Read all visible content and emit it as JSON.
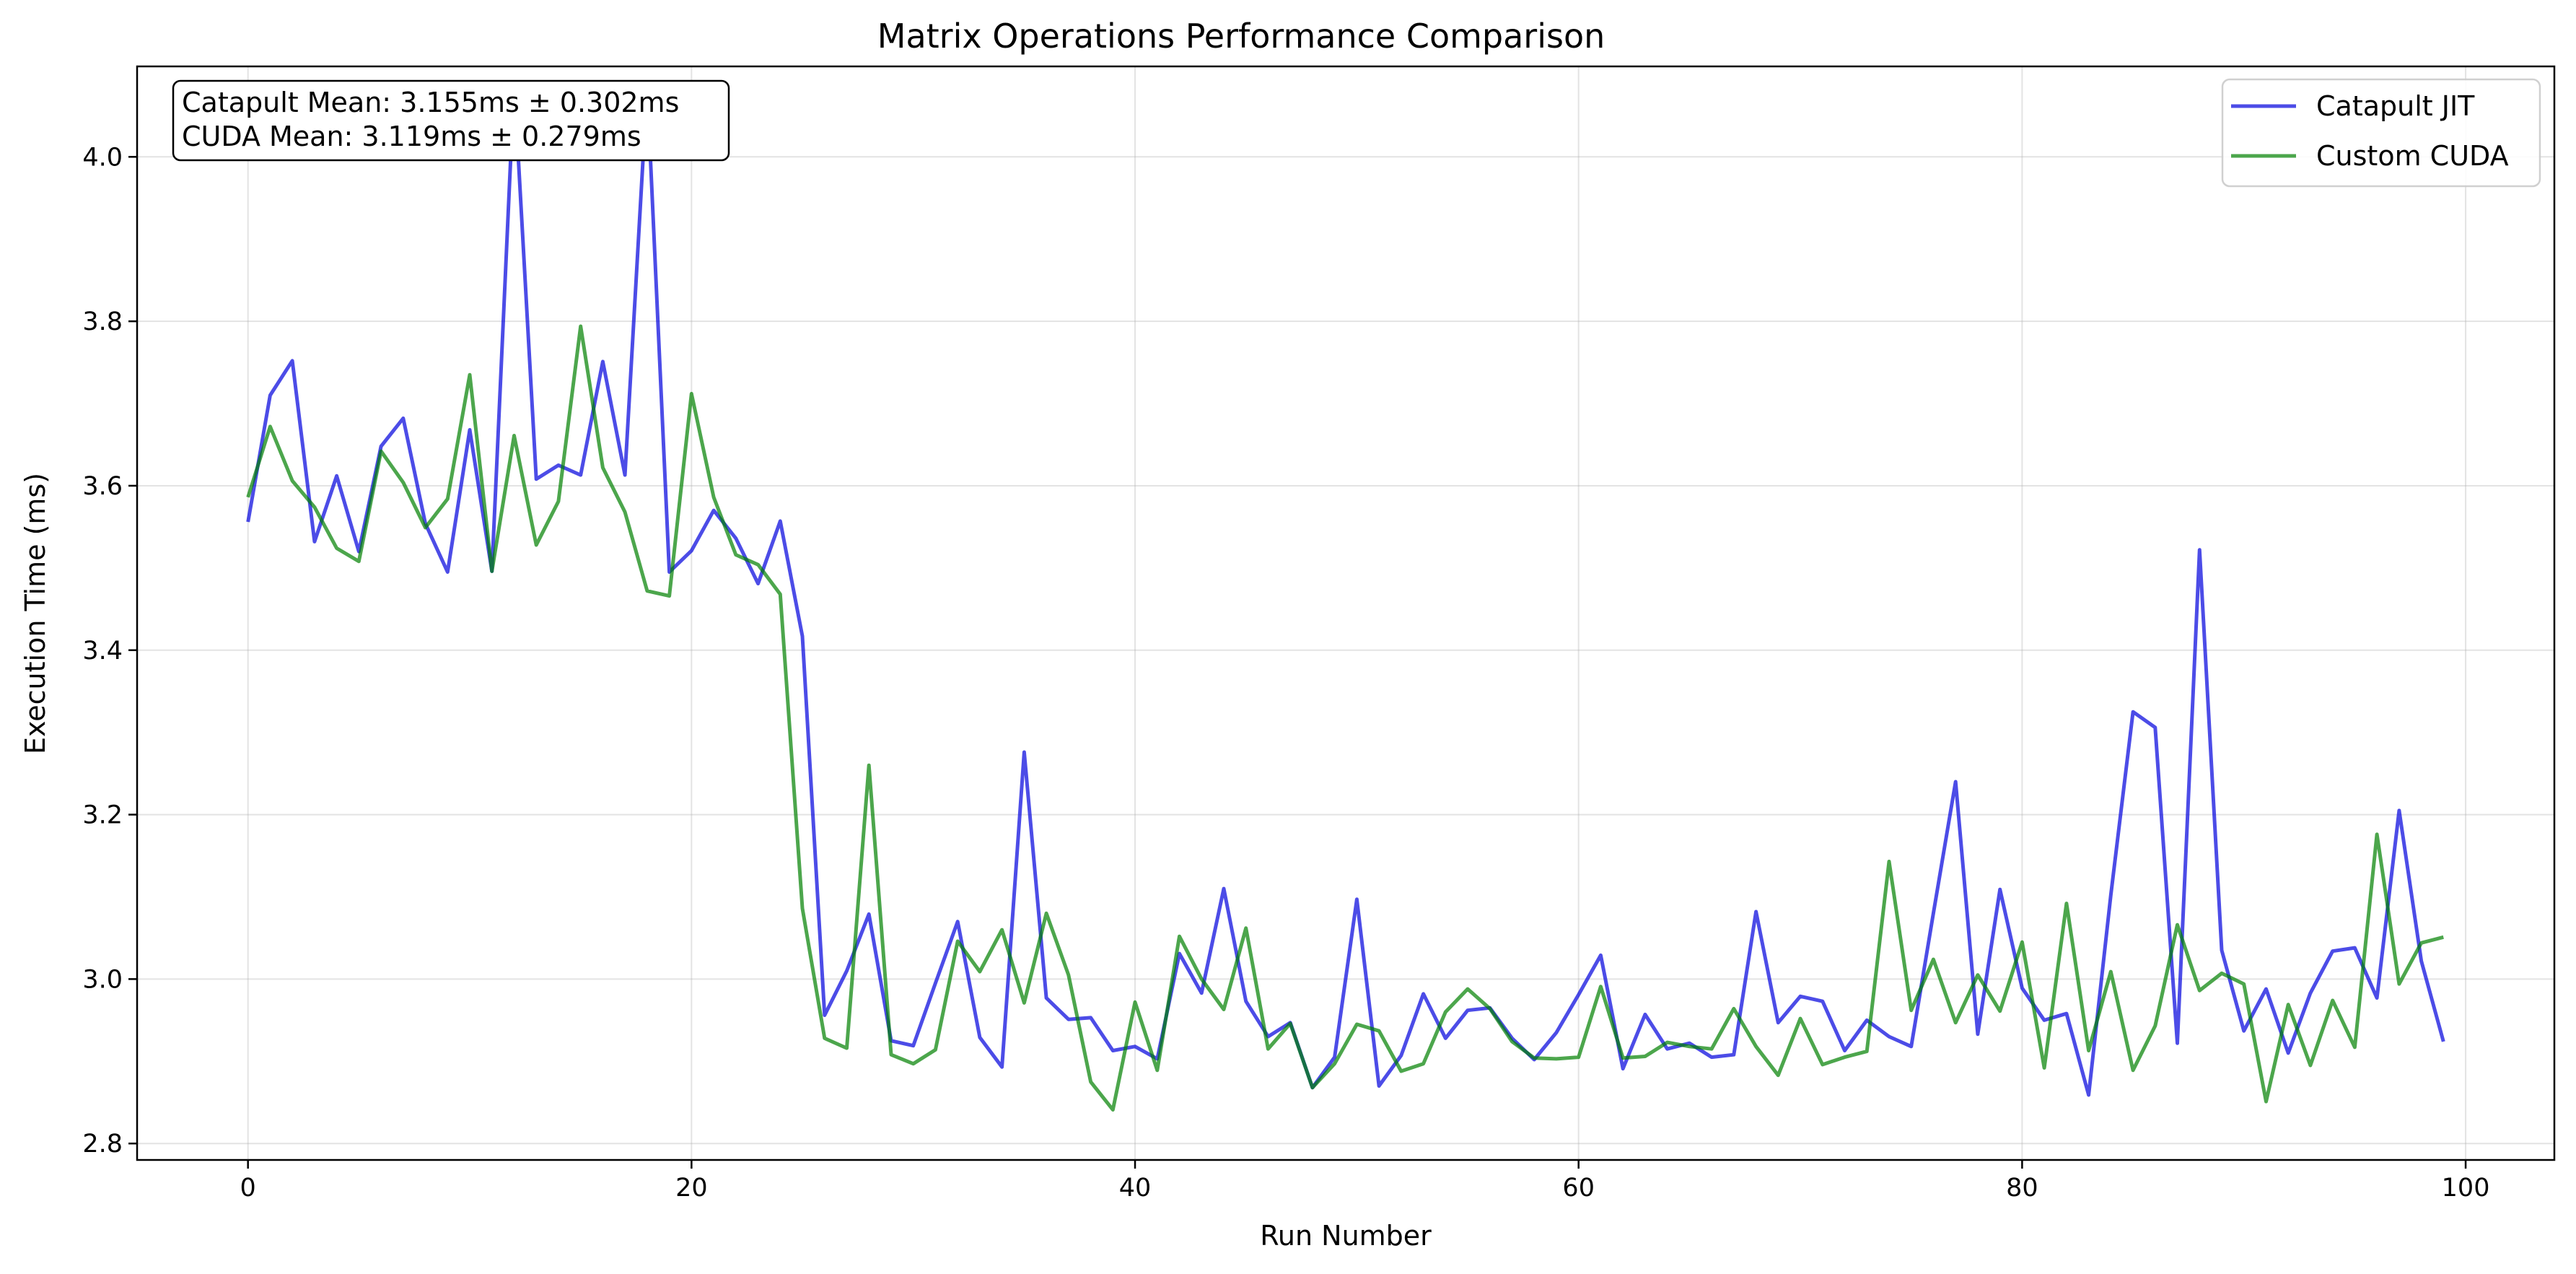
{
  "chart_data": {
    "type": "line",
    "title": "Matrix Operations Performance Comparison",
    "xlabel": "Run Number",
    "ylabel": "Execution Time (ms)",
    "xlim": [
      -5,
      104
    ],
    "ylim": [
      2.78,
      4.11
    ],
    "xticks": [
      0,
      20,
      40,
      60,
      80,
      100
    ],
    "yticks": [
      2.8,
      3.0,
      3.2,
      3.4,
      3.6,
      3.8,
      4.0
    ],
    "ytick_labels": [
      "2.8",
      "3.0",
      "3.2",
      "3.4",
      "3.6",
      "3.8",
      "4.0"
    ],
    "grid": true,
    "legend_position": "top-right",
    "annotation_lines": [
      "Catapult Mean: 3.155ms ± 0.302ms",
      "CUDA Mean: 3.119ms ± 0.279ms"
    ],
    "x": [
      0,
      1,
      2,
      3,
      4,
      5,
      6,
      7,
      8,
      9,
      10,
      11,
      12,
      13,
      14,
      15,
      16,
      17,
      18,
      19,
      20,
      21,
      22,
      23,
      24,
      25,
      26,
      27,
      28,
      29,
      30,
      31,
      32,
      33,
      34,
      35,
      36,
      37,
      38,
      39,
      40,
      41,
      42,
      43,
      44,
      45,
      46,
      47,
      48,
      49,
      50,
      51,
      52,
      53,
      54,
      55,
      56,
      57,
      58,
      59,
      60,
      61,
      62,
      63,
      64,
      65,
      66,
      67,
      68,
      69,
      70,
      71,
      72,
      73,
      74,
      75,
      76,
      77,
      78,
      79,
      80,
      81,
      82,
      83,
      84,
      85,
      86,
      87,
      88,
      89,
      90,
      91,
      92,
      93,
      94,
      95,
      96,
      97,
      98,
      99
    ],
    "series": [
      {
        "name": "Catapult JIT",
        "color": "#0000dd",
        "values": [
          3.556,
          3.71,
          3.752,
          3.532,
          3.612,
          3.52,
          3.648,
          3.682,
          3.554,
          3.495,
          3.668,
          3.496,
          4.09,
          3.608,
          3.625,
          3.613,
          3.751,
          3.613,
          4.085,
          3.495,
          3.521,
          3.57,
          3.536,
          3.481,
          3.557,
          3.417,
          2.956,
          3.01,
          3.079,
          2.925,
          2.919,
          2.995,
          3.07,
          2.929,
          2.893,
          3.276,
          2.977,
          2.951,
          2.953,
          2.913,
          2.918,
          2.903,
          3.031,
          2.983,
          3.11,
          2.973,
          2.93,
          2.947,
          2.868,
          2.905,
          3.097,
          2.87,
          2.907,
          2.982,
          2.928,
          2.962,
          2.965,
          2.928,
          2.902,
          2.935,
          2.981,
          3.029,
          2.891,
          2.957,
          2.915,
          2.922,
          2.905,
          2.908,
          3.082,
          2.947,
          2.979,
          2.973,
          2.913,
          2.95,
          2.93,
          2.918,
          3.08,
          3.24,
          2.933,
          3.109,
          2.989,
          2.95,
          2.958,
          2.859,
          3.102,
          3.325,
          3.306,
          2.922,
          3.522,
          3.035,
          2.937,
          2.988,
          2.91,
          2.983,
          3.034,
          3.038,
          2.977,
          3.205,
          3.022,
          2.924
        ]
      },
      {
        "name": "Custom CUDA",
        "color": "#008000",
        "values": [
          3.586,
          3.672,
          3.606,
          3.574,
          3.524,
          3.508,
          3.642,
          3.604,
          3.549,
          3.584,
          3.735,
          3.496,
          3.661,
          3.528,
          3.581,
          3.794,
          3.622,
          3.568,
          3.472,
          3.466,
          3.712,
          3.586,
          3.516,
          3.504,
          3.468,
          3.086,
          2.928,
          2.916,
          3.26,
          2.908,
          2.897,
          2.914,
          3.046,
          3.009,
          3.06,
          2.971,
          3.08,
          3.005,
          2.875,
          2.841,
          2.972,
          2.889,
          3.052,
          3.0,
          2.963,
          3.062,
          2.915,
          2.946,
          2.868,
          2.897,
          2.945,
          2.937,
          2.888,
          2.897,
          2.96,
          2.988,
          2.964,
          2.924,
          2.904,
          2.903,
          2.905,
          2.991,
          2.904,
          2.906,
          2.923,
          2.918,
          2.915,
          2.964,
          2.918,
          2.883,
          2.952,
          2.896,
          2.905,
          2.912,
          3.143,
          2.962,
          3.024,
          2.947,
          3.005,
          2.961,
          3.045,
          2.892,
          3.092,
          2.913,
          3.009,
          2.889,
          2.943,
          3.066,
          2.986,
          3.007,
          2.994,
          2.851,
          2.969,
          2.895,
          2.974,
          2.917,
          3.176,
          2.994,
          3.044,
          3.051
        ]
      }
    ]
  }
}
